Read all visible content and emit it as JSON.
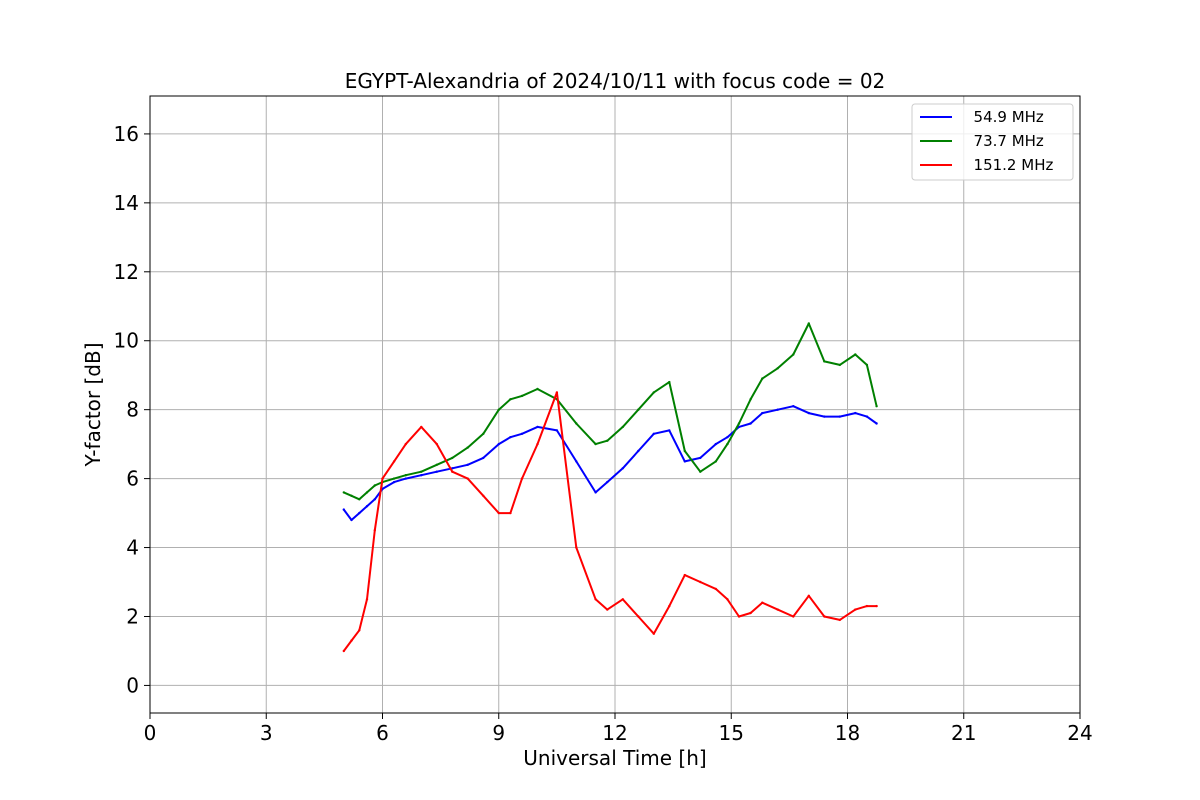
{
  "chart_data": {
    "type": "line",
    "title": "EGYPT-Alexandria of 2024/10/11 with focus code = 02",
    "xlabel": "Universal Time [h]",
    "ylabel": "Y-factor [dB]",
    "xlim": [
      0,
      24
    ],
    "ylim": [
      -0.8,
      17.1
    ],
    "xticks": [
      0,
      3,
      6,
      9,
      12,
      15,
      18,
      21,
      24
    ],
    "yticks": [
      0,
      2,
      4,
      6,
      8,
      10,
      12,
      14,
      16
    ],
    "grid": true,
    "legend_position": "top-right",
    "series": [
      {
        "name": "  54.9 MHz",
        "color": "#0000ff",
        "x": [
          5.0,
          5.2,
          5.4,
          5.6,
          5.8,
          6.0,
          6.3,
          6.6,
          7.0,
          7.4,
          7.8,
          8.2,
          8.6,
          9.0,
          9.3,
          9.6,
          10.0,
          10.5,
          11.0,
          11.5,
          11.8,
          12.2,
          12.6,
          13.0,
          13.4,
          13.8,
          14.2,
          14.6,
          14.9,
          15.2,
          15.5,
          15.8,
          16.2,
          16.6,
          17.0,
          17.4,
          17.8,
          18.2,
          18.5,
          18.75
        ],
        "y": [
          5.1,
          4.8,
          5.0,
          5.2,
          5.4,
          5.7,
          5.9,
          6.0,
          6.1,
          6.2,
          6.3,
          6.4,
          6.6,
          7.0,
          7.2,
          7.3,
          7.5,
          7.4,
          6.5,
          5.6,
          5.9,
          6.3,
          6.8,
          7.3,
          7.4,
          6.5,
          6.6,
          7.0,
          7.2,
          7.5,
          7.6,
          7.9,
          8.0,
          8.1,
          7.9,
          7.8,
          7.8,
          7.9,
          7.8,
          7.6
        ]
      },
      {
        "name": "  73.7 MHz",
        "color": "#008000",
        "x": [
          5.0,
          5.2,
          5.4,
          5.6,
          5.8,
          6.0,
          6.3,
          6.6,
          7.0,
          7.4,
          7.8,
          8.2,
          8.6,
          9.0,
          9.3,
          9.6,
          10.0,
          10.5,
          11.0,
          11.5,
          11.8,
          12.2,
          12.6,
          13.0,
          13.4,
          13.8,
          14.2,
          14.6,
          14.9,
          15.2,
          15.5,
          15.8,
          16.2,
          16.6,
          17.0,
          17.4,
          17.8,
          18.2,
          18.5,
          18.75
        ],
        "y": [
          5.6,
          5.5,
          5.4,
          5.6,
          5.8,
          5.9,
          6.0,
          6.1,
          6.2,
          6.4,
          6.6,
          6.9,
          7.3,
          8.0,
          8.3,
          8.4,
          8.6,
          8.3,
          7.6,
          7.0,
          7.1,
          7.5,
          8.0,
          8.5,
          8.8,
          6.8,
          6.2,
          6.5,
          7.0,
          7.6,
          8.3,
          8.9,
          9.2,
          9.6,
          10.5,
          9.4,
          9.3,
          9.6,
          9.3,
          8.1
        ]
      },
      {
        "name": "  151.2 MHz",
        "color": "#ff0000",
        "x": [
          5.0,
          5.2,
          5.4,
          5.6,
          5.8,
          6.0,
          6.3,
          6.6,
          7.0,
          7.4,
          7.8,
          8.2,
          8.6,
          9.0,
          9.3,
          9.6,
          10.0,
          10.5,
          11.0,
          11.5,
          11.8,
          12.2,
          12.6,
          13.0,
          13.4,
          13.8,
          14.2,
          14.6,
          14.9,
          15.2,
          15.5,
          15.8,
          16.2,
          16.6,
          17.0,
          17.4,
          17.8,
          18.2,
          18.5,
          18.75
        ],
        "y": [
          1.0,
          1.3,
          1.6,
          2.5,
          4.5,
          6.0,
          6.5,
          7.0,
          7.5,
          7.0,
          6.2,
          6.0,
          5.5,
          5.0,
          5.0,
          6.0,
          7.0,
          8.5,
          4.0,
          2.5,
          2.2,
          2.5,
          2.0,
          1.5,
          2.3,
          3.2,
          3.0,
          2.8,
          2.5,
          2.0,
          2.1,
          2.4,
          2.2,
          2.0,
          2.6,
          2.0,
          1.9,
          2.2,
          2.3,
          2.3
        ]
      }
    ]
  }
}
